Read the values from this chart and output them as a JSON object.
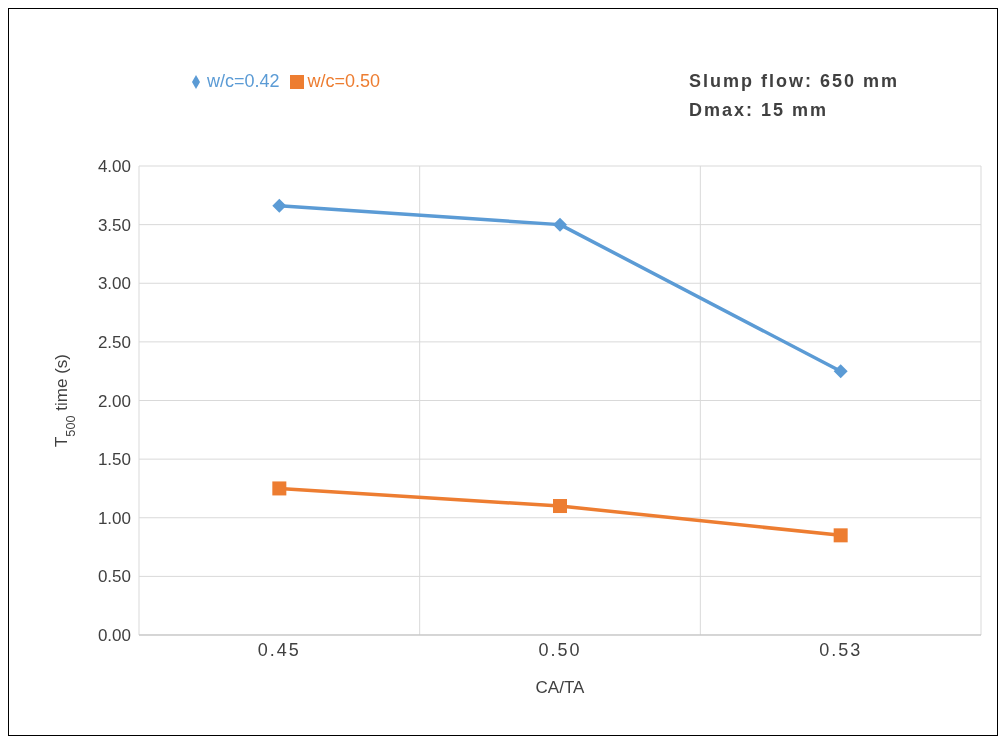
{
  "chart_data": {
    "type": "line",
    "xlabel": "CA/TA",
    "ylabel": "T$_{500}$ time (s)",
    "categories": [
      "0.45",
      "0.50",
      "0.53"
    ],
    "series": [
      {
        "name": "w/c=0.42",
        "color": "#5b9bd5",
        "marker": "diamond",
        "values": [
          3.66,
          3.5,
          2.25
        ]
      },
      {
        "name": "w/c=0.50",
        "color": "#ed7d31",
        "marker": "square",
        "values": [
          1.25,
          1.1,
          0.85
        ]
      }
    ],
    "ylim": [
      0,
      4
    ],
    "yticks": [
      {
        "value": 0,
        "label": "0.00"
      },
      {
        "value": 0.5,
        "label": "0.50"
      },
      {
        "value": 1,
        "label": "1.00"
      },
      {
        "value": 1.5,
        "label": "1.50"
      },
      {
        "value": 2,
        "label": "2.00"
      },
      {
        "value": 2.5,
        "label": "2.50"
      },
      {
        "value": 3,
        "label": "3.00"
      },
      {
        "value": 3.5,
        "label": "3.50"
      },
      {
        "value": 4,
        "label": "4.00"
      }
    ],
    "grid": true,
    "legend": "top left",
    "line_style": "solid",
    "annotations": [
      "Slump flow: 650 mm",
      "Dmax: 15 mm"
    ]
  }
}
